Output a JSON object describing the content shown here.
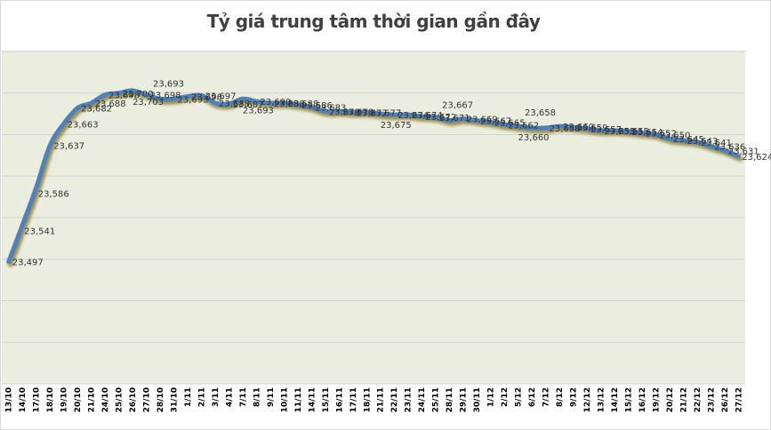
{
  "header": {
    "title": "Tỷ giá trung tâm thời gian gần đây"
  },
  "colors": {
    "plot_background": "#ebeede",
    "line": "#4f81bd",
    "shadow": "#8a7d3a",
    "gridline": "#d4d4d4"
  },
  "chart_data": {
    "type": "line",
    "title": "Tỷ giá trung tâm thời gian gần đây",
    "xlabel": "",
    "ylabel": "",
    "ylim": [
      23350,
      23750
    ],
    "grid": true,
    "legend": "none",
    "categories": [
      "13/10",
      "14/10",
      "17/10",
      "18/10",
      "19/10",
      "20/10",
      "21/10",
      "24/10",
      "25/10",
      "26/10",
      "27/10",
      "28/10",
      "31/10",
      "1/11",
      "2/11",
      "3/11",
      "4/11",
      "7/11",
      "8/11",
      "9/11",
      "10/11",
      "11/11",
      "14/11",
      "15/11",
      "16/11",
      "17/11",
      "18/11",
      "21/11",
      "22/11",
      "23/11",
      "24/11",
      "25/11",
      "28/11",
      "29/11",
      "30/11",
      "1/12",
      "2/12",
      "5/12",
      "6/12",
      "7/12",
      "8/12",
      "9/12",
      "12/12",
      "13/12",
      "14/12",
      "15/12",
      "16/12",
      "19/12",
      "20/12",
      "21/12",
      "22/12",
      "23/12",
      "26/12",
      "27/12"
    ],
    "series": [
      {
        "name": "Tỷ giá trung tâm",
        "values": [
          23497,
          23541,
          23586,
          23637,
          23663,
          23682,
          23688,
          23698,
          23700,
          23703,
          23698,
          23693,
          23693,
          23696,
          23697,
          23688,
          23687,
          23693,
          23690,
          23688,
          23688,
          23686,
          23683,
          23678,
          23678,
          23677,
          23677,
          23675,
          23674,
          23674,
          23672,
          23671,
          23667,
          23669,
          23667,
          23665,
          23662,
          23660,
          23658,
          23658,
          23660,
          23659,
          23657,
          23655,
          23655,
          23654,
          23652,
          23650,
          23645,
          23643,
          23641,
          23636,
          23631,
          23624
        ]
      }
    ],
    "data_labels": [
      "23,497",
      "23,541",
      "23,586",
      "23,637",
      "23,663",
      "23,682",
      "23,688",
      "23,698",
      "23,700",
      "23,703",
      "23,698",
      "23,693",
      "23,693",
      "23,696",
      "23,697",
      "23,688",
      "23,687",
      "23,693",
      "23,690",
      "23,688",
      "23,688",
      "23,686",
      "23,683",
      "23,678",
      "23,678",
      "23,677",
      "23,677",
      "23,675",
      "23,674",
      "23,674",
      "23,672",
      "23,671",
      "23,667",
      "23,669",
      "23,667",
      "23,665",
      "23,662",
      "23,660",
      "23,658",
      "23,658",
      "23,660",
      "23,659",
      "23,657",
      "23,655",
      "23,655",
      "23,654",
      "23,652",
      "23,650",
      "23,645",
      "23,643",
      "23,641",
      "23,636",
      "23,631",
      "23,624"
    ]
  }
}
